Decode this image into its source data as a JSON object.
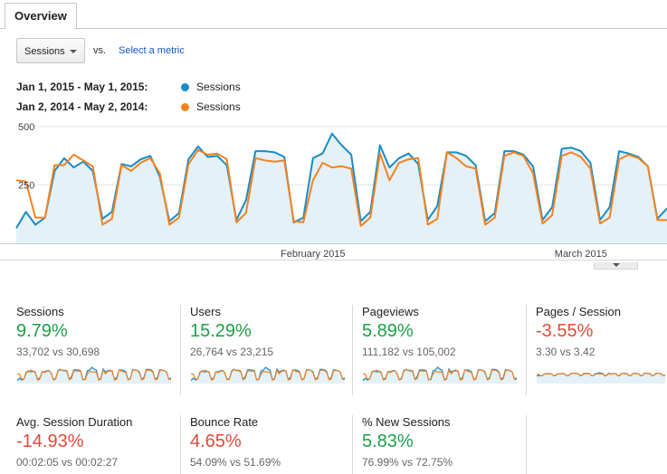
{
  "tabs": {
    "overview": "Overview"
  },
  "controls": {
    "metric_select": "Sessions",
    "vs_label": "vs.",
    "select_metric_link": "Select a metric"
  },
  "legend": [
    {
      "range": "Jan 1, 2015 - May 1, 2015:",
      "series": "Sessions",
      "color": "#1a8bc7"
    },
    {
      "range": "Jan 2, 2014 - May 2, 2014:",
      "series": "Sessions",
      "color": "#f58220"
    }
  ],
  "chart_data": {
    "type": "area",
    "title": "",
    "ylim": [
      0,
      500
    ],
    "yticks": [
      "500",
      "250"
    ],
    "xticks": [
      {
        "label": "February 2015",
        "index": 31
      },
      {
        "label": "March 2015",
        "index": 59
      }
    ],
    "series": [
      {
        "name": "Sessions (Jan 1, 2015 - May 1, 2015)",
        "color": "#1a8bc7",
        "values": [
          65,
          135,
          80,
          110,
          310,
          365,
          325,
          350,
          310,
          105,
          135,
          340,
          330,
          360,
          375,
          285,
          95,
          130,
          360,
          415,
          370,
          375,
          335,
          100,
          185,
          395,
          395,
          390,
          370,
          90,
          110,
          365,
          385,
          470,
          420,
          380,
          95,
          135,
          420,
          325,
          365,
          385,
          340,
          100,
          160,
          390,
          390,
          375,
          335,
          95,
          130,
          395,
          395,
          380,
          330,
          100,
          155,
          405,
          410,
          395,
          345,
          100,
          155,
          395,
          385,
          370,
          330,
          105,
          150
        ]
      },
      {
        "name": "Sessions (Jan 2, 2014 - May 2, 2014)",
        "color": "#f58220",
        "values": [
          270,
          265,
          110,
          110,
          335,
          335,
          380,
          355,
          330,
          80,
          105,
          335,
          310,
          345,
          365,
          300,
          80,
          110,
          340,
          400,
          380,
          385,
          360,
          90,
          130,
          365,
          355,
          350,
          355,
          95,
          90,
          270,
          345,
          325,
          330,
          320,
          75,
          110,
          385,
          270,
          345,
          360,
          365,
          80,
          105,
          390,
          365,
          330,
          320,
          80,
          110,
          375,
          390,
          375,
          300,
          85,
          120,
          375,
          390,
          370,
          320,
          85,
          110,
          360,
          380,
          365,
          330,
          100,
          100
        ]
      }
    ]
  },
  "metrics": [
    {
      "name": "Sessions",
      "pct": "9.79%",
      "trend": "up",
      "compare": "33,702 vs 30,698"
    },
    {
      "name": "Users",
      "pct": "15.29%",
      "trend": "up",
      "compare": "26,764 vs 23,215"
    },
    {
      "name": "Pageviews",
      "pct": "5.89%",
      "trend": "up",
      "compare": "111,182 vs 105,002"
    },
    {
      "name": "Pages / Session",
      "pct": "-3.55%",
      "trend": "down",
      "compare": "3.30 vs 3.42"
    },
    {
      "name": "Avg. Session Duration",
      "pct": "-14.93%",
      "trend": "down",
      "compare": "00:02:05 vs 00:02:27"
    },
    {
      "name": "Bounce Rate",
      "pct": "4.65%",
      "trend": "down",
      "compare": "54.09% vs 51.69%"
    },
    {
      "name": "% New Sessions",
      "pct": "5.83%",
      "trend": "up",
      "compare": "76.99% vs 72.75%"
    }
  ],
  "colors": {
    "up": "#1e9e49",
    "down": "#dd4b39",
    "link": "#1155cc",
    "area_fill": "#e4f1f8"
  }
}
